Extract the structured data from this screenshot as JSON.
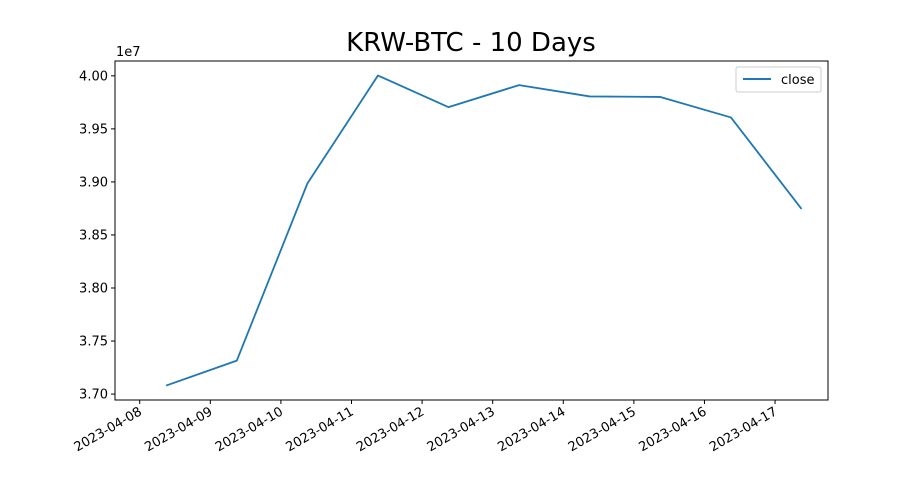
{
  "chart_data": {
    "type": "line",
    "title": "KRW-BTC - 10 Days",
    "xlabel": "",
    "ylabel": "",
    "y_offset_label": "1e7",
    "x_tick_labels": [
      "2023-04-08",
      "2023-04-09",
      "2023-04-10",
      "2023-04-11",
      "2023-04-12",
      "2023-04-13",
      "2023-04-14",
      "2023-04-15",
      "2023-04-16",
      "2023-04-17"
    ],
    "y_tick_labels": [
      "3.70",
      "3.75",
      "3.80",
      "3.85",
      "3.90",
      "3.95",
      "4.00"
    ],
    "y_ticks": [
      37000000,
      37500000,
      38000000,
      38500000,
      39000000,
      39500000,
      40000000
    ],
    "ylim": [
      36944000,
      40140000
    ],
    "grid": false,
    "legend_position": "top-right",
    "series": [
      {
        "name": "close",
        "color": "#1f77b4",
        "x": [
          "2023-04-08 09:00",
          "2023-04-09 09:00",
          "2023-04-10 09:00",
          "2023-04-11 09:00",
          "2023-04-12 09:00",
          "2023-04-13 09:00",
          "2023-04-14 09:00",
          "2023-04-15 09:00",
          "2023-04-16 09:00",
          "2023-04-17 09:00"
        ],
        "values": [
          37080000,
          37315000,
          38985000,
          40003000,
          39705000,
          39913000,
          39806000,
          39801000,
          39608000,
          38745000
        ]
      }
    ]
  }
}
